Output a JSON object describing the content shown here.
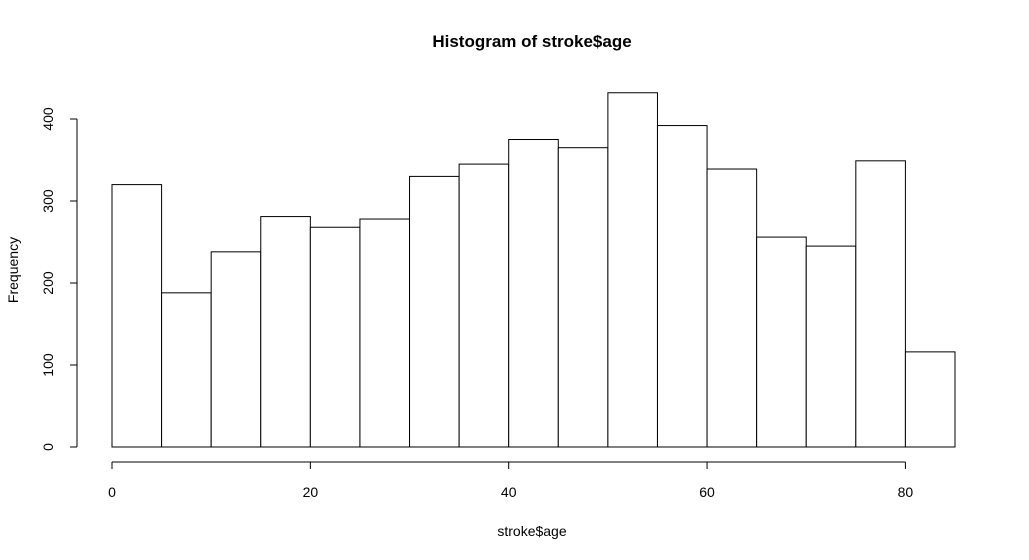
{
  "chart_data": {
    "type": "bar",
    "title": "Histogram of stroke$age",
    "xlabel": "stroke$age",
    "ylabel": "Frequency",
    "bin_edges": [
      0,
      5,
      10,
      15,
      20,
      25,
      30,
      35,
      40,
      45,
      50,
      55,
      60,
      65,
      70,
      75,
      80,
      85
    ],
    "values": [
      320,
      188,
      238,
      281,
      268,
      278,
      330,
      345,
      375,
      365,
      432,
      392,
      339,
      256,
      245,
      349,
      116
    ],
    "xlim": [
      0,
      85
    ],
    "ylim": [
      0,
      440
    ],
    "x_ticks": [
      0,
      20,
      40,
      60,
      80
    ],
    "y_ticks": [
      0,
      100,
      200,
      300,
      400
    ],
    "grid": false,
    "legend": "none",
    "colors": {
      "bar_fill": "#ffffff",
      "bar_stroke": "#000000"
    }
  }
}
